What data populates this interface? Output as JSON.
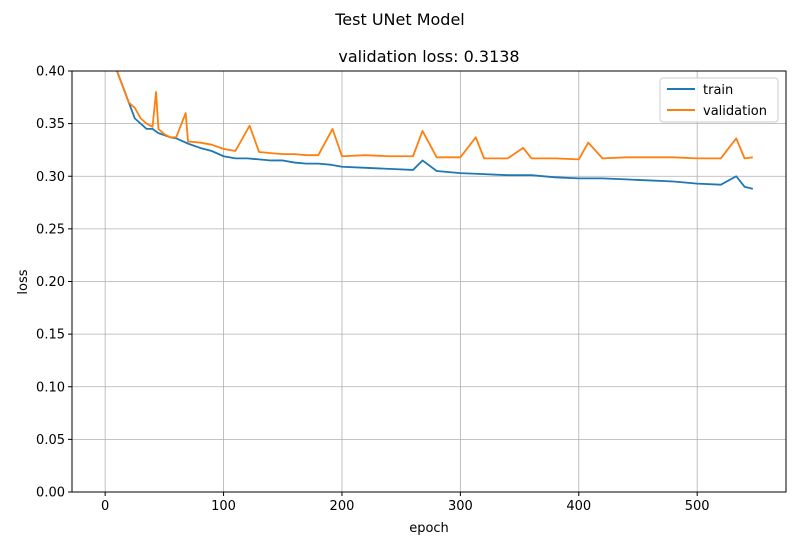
{
  "figure": {
    "suptitle": "Test UNet Model"
  },
  "chart_data": {
    "type": "line",
    "title": "validation loss: 0.3138",
    "xlabel": "epoch",
    "ylabel": "loss",
    "xlim": [
      -28,
      575
    ],
    "ylim": [
      0.0,
      0.4
    ],
    "xticks": [
      0,
      100,
      200,
      300,
      400,
      500
    ],
    "yticks": [
      0.0,
      0.05,
      0.1,
      0.15,
      0.2,
      0.25,
      0.3,
      0.35,
      0.4
    ],
    "ytick_labels": [
      "0.00",
      "0.05",
      "0.10",
      "0.15",
      "0.20",
      "0.25",
      "0.30",
      "0.35",
      "0.40"
    ],
    "xtick_labels": [
      "0",
      "100",
      "200",
      "300",
      "400",
      "500"
    ],
    "grid": true,
    "legend_position": "top-right",
    "series": [
      {
        "name": "train",
        "color": "#1f77b4",
        "x": [
          10,
          15,
          20,
          25,
          30,
          35,
          40,
          45,
          50,
          55,
          60,
          70,
          80,
          90,
          100,
          110,
          120,
          130,
          140,
          150,
          160,
          170,
          180,
          190,
          200,
          220,
          240,
          260,
          268,
          280,
          300,
          320,
          340,
          360,
          380,
          400,
          420,
          440,
          460,
          480,
          500,
          520,
          533,
          540,
          547
        ],
        "values": [
          0.4,
          0.385,
          0.37,
          0.355,
          0.35,
          0.345,
          0.345,
          0.341,
          0.339,
          0.337,
          0.336,
          0.331,
          0.327,
          0.324,
          0.319,
          0.317,
          0.317,
          0.316,
          0.315,
          0.315,
          0.313,
          0.312,
          0.312,
          0.311,
          0.309,
          0.308,
          0.307,
          0.306,
          0.315,
          0.305,
          0.303,
          0.302,
          0.301,
          0.301,
          0.299,
          0.298,
          0.298,
          0.297,
          0.296,
          0.295,
          0.293,
          0.292,
          0.3,
          0.29,
          0.288
        ]
      },
      {
        "name": "validation",
        "color": "#ff7f0e",
        "x": [
          10,
          15,
          20,
          25,
          30,
          35,
          40,
          43,
          45,
          50,
          55,
          60,
          68,
          70,
          80,
          90,
          100,
          110,
          122,
          130,
          140,
          150,
          160,
          170,
          180,
          192,
          200,
          220,
          240,
          260,
          268,
          280,
          300,
          313,
          320,
          340,
          353,
          360,
          380,
          400,
          408,
          420,
          440,
          460,
          480,
          500,
          520,
          533,
          540,
          547
        ],
        "values": [
          0.4,
          0.385,
          0.37,
          0.365,
          0.355,
          0.35,
          0.347,
          0.38,
          0.345,
          0.34,
          0.337,
          0.337,
          0.36,
          0.333,
          0.332,
          0.33,
          0.326,
          0.324,
          0.348,
          0.323,
          0.322,
          0.321,
          0.321,
          0.32,
          0.32,
          0.345,
          0.319,
          0.32,
          0.319,
          0.319,
          0.343,
          0.318,
          0.318,
          0.337,
          0.317,
          0.317,
          0.327,
          0.317,
          0.317,
          0.316,
          0.332,
          0.317,
          0.318,
          0.318,
          0.318,
          0.317,
          0.317,
          0.336,
          0.317,
          0.318
        ]
      }
    ]
  }
}
